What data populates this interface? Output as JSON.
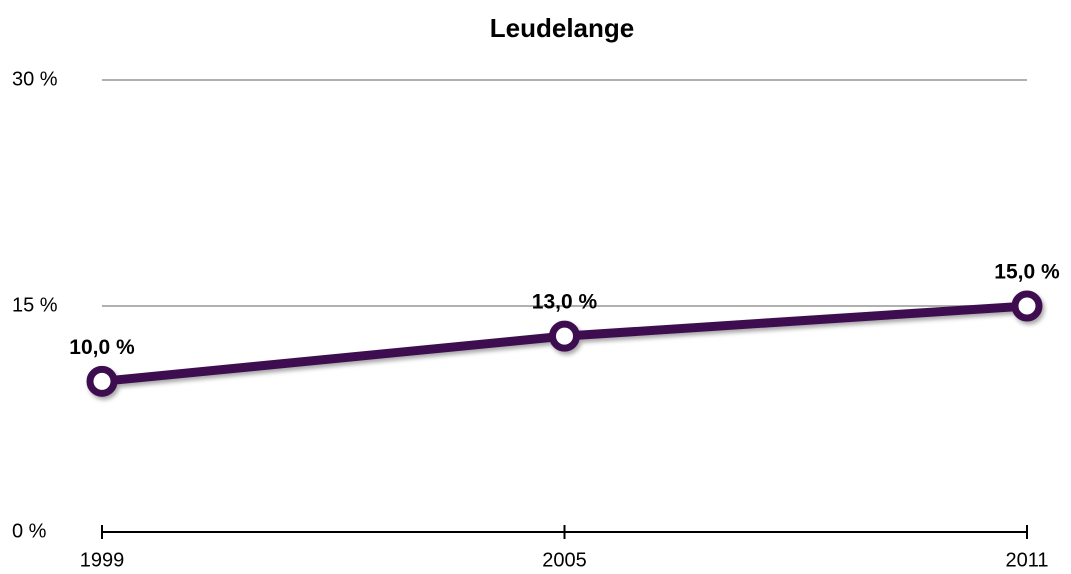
{
  "chart_data": {
    "type": "line",
    "title": "Leudelange",
    "categories": [
      "1999",
      "2005",
      "2011"
    ],
    "values": [
      10,
      13,
      15
    ],
    "value_labels": [
      "10,0 %",
      "13,0 %",
      "15,0 %"
    ],
    "color": "#3d1150",
    "ylim": [
      0,
      30
    ],
    "yticks": [
      {
        "value": 0,
        "label": "0 %"
      },
      {
        "value": 15,
        "label": "15 %"
      },
      {
        "value": 30,
        "label": "30 %"
      }
    ],
    "grid": true
  }
}
